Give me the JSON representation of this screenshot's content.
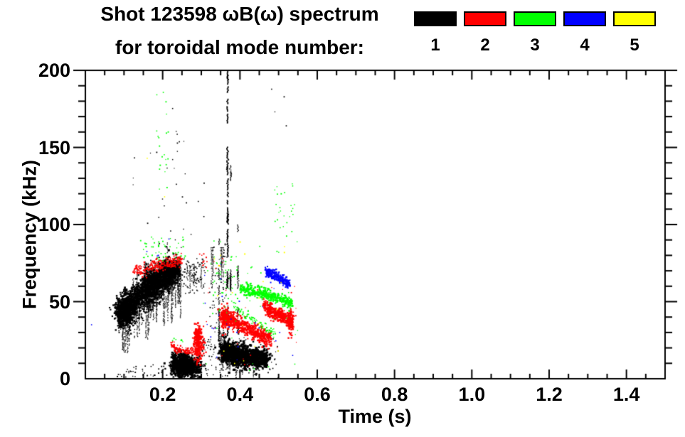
{
  "title": {
    "line1": "Shot 123598 ωB(ω) spectrum",
    "line2": "for toroidal mode number:"
  },
  "legend": {
    "items": [
      {
        "label": "1",
        "color": "#000000"
      },
      {
        "label": "2",
        "color": "#ff0000"
      },
      {
        "label": "3",
        "color": "#00ff00"
      },
      {
        "label": "4",
        "color": "#0000ff"
      },
      {
        "label": "5",
        "color": "#ffff00"
      }
    ]
  },
  "chart_data": {
    "type": "scatter",
    "title": "Shot 123598 ωB(ω) spectrum for toroidal mode number: 1 2 3 4 5",
    "xlabel": "Time (s)",
    "ylabel": "Frequency (kHz)",
    "xlim": [
      0,
      1.5
    ],
    "ylim": [
      0,
      200
    ],
    "x_major_ticks": [
      0.2,
      0.4,
      0.6,
      0.8,
      1.0,
      1.2,
      1.4
    ],
    "x_tick_labels": [
      "0.2",
      "0.4",
      "0.6",
      "0.8",
      "1.0",
      "1.2",
      "1.4"
    ],
    "x_minor_step": 0.05,
    "y_major_ticks": [
      0,
      50,
      100,
      150,
      200
    ],
    "y_tick_labels": [
      "0",
      "50",
      "100",
      "150",
      "200"
    ],
    "y_minor_step": 10,
    "grid": false,
    "legend_position": "top-right",
    "modes": [
      {
        "n": 1,
        "color": "#000000"
      },
      {
        "n": 2,
        "color": "#ff0000"
      },
      {
        "n": 3,
        "color": "#00ff00"
      },
      {
        "n": 4,
        "color": "#0000ff"
      },
      {
        "n": 5,
        "color": "#ffff00"
      }
    ],
    "features": [
      {
        "m": 1,
        "type": "blob",
        "t": 0.105,
        "f": 44,
        "st": 0.013,
        "sf": 4.5,
        "n": 700,
        "s": 2.2
      },
      {
        "m": 1,
        "type": "blob",
        "t": 0.17,
        "f": 60,
        "st": 0.012,
        "sf": 6,
        "n": 450,
        "s": 2.2
      },
      {
        "m": 1,
        "type": "blob",
        "t": 0.21,
        "f": 68,
        "st": 0.01,
        "sf": 5,
        "n": 400,
        "s": 2.2
      },
      {
        "m": 1,
        "type": "band",
        "t0": 0.085,
        "f0": 42,
        "fm": 64,
        "f1": 71,
        "t1": 0.245,
        "sp": 4,
        "n": 1500,
        "s": 2.2
      },
      {
        "m": 1,
        "type": "band",
        "t0": 0.085,
        "f0": 38,
        "fm": 50,
        "f1": 60,
        "t1": 0.2,
        "sp": 5,
        "n": 300,
        "s": 1.8
      },
      {
        "m": 1,
        "type": "streaks",
        "t0": 0.09,
        "t1": 0.25,
        "k": 60,
        "f0": 46,
        "fm": 68,
        "f1": 75,
        "off": 0,
        "lmin": 8,
        "lmax": 38,
        "dir": -1,
        "s": 1.4
      },
      {
        "m": 1,
        "type": "streaks",
        "t0": 0.1,
        "t1": 0.24,
        "k": 12,
        "f0": 46,
        "fm": 68,
        "f1": 75,
        "off": 2,
        "lmin": 5,
        "lmax": 16,
        "dir": 1,
        "s": 1.3
      },
      {
        "m": 1,
        "type": "scatter",
        "t0": 0.08,
        "t1": 0.31,
        "f0": 1,
        "f1": 9,
        "n": 65,
        "s": 1.5
      },
      {
        "m": 1,
        "type": "blob",
        "t": 0.255,
        "f": 8.5,
        "st": 0.014,
        "sf": 3.4,
        "n": 800,
        "s": 2.4
      },
      {
        "m": 1,
        "type": "band",
        "t0": 0.225,
        "f0": 11,
        "fm": 8,
        "f1": 6,
        "t1": 0.3,
        "sp": 3.4,
        "n": 420,
        "s": 2.3
      },
      {
        "m": 1,
        "type": "scatter",
        "t0": 0.25,
        "t1": 0.31,
        "f0": 55,
        "f1": 78,
        "n": 80,
        "s": 1.5
      },
      {
        "m": 1,
        "type": "streaks",
        "t0": 0.26,
        "t1": 0.3,
        "k": 6,
        "f0": 74,
        "fm": 74,
        "f1": 74,
        "off": 0,
        "lmin": 8,
        "lmax": 20,
        "dir": -1,
        "s": 1.3
      },
      {
        "m": 1,
        "type": "scatter",
        "t0": 0.115,
        "t1": 0.31,
        "f0": 85,
        "f1": 148,
        "n": 26,
        "s": 1.4
      },
      {
        "m": 1,
        "type": "scatter",
        "t0": 0.22,
        "t1": 0.27,
        "f0": 148,
        "f1": 183,
        "n": 6,
        "s": 1.4
      },
      {
        "m": 1,
        "type": "spike",
        "t": 0.368,
        "f0": 28,
        "f1": 196,
        "seg": 30,
        "s": 1.8
      },
      {
        "m": 1,
        "type": "spike",
        "t": 0.376,
        "f0": 55,
        "f1": 148,
        "seg": 9,
        "s": 1.4
      },
      {
        "m": 1,
        "type": "spike",
        "t": 0.395,
        "f0": 28,
        "f1": 112,
        "seg": 11,
        "s": 1.4
      },
      {
        "m": 1,
        "type": "spike",
        "t": 0.346,
        "f0": 26,
        "f1": 88,
        "seg": 10,
        "s": 1.4
      },
      {
        "m": 1,
        "type": "blob",
        "t": 0.362,
        "f": 17.5,
        "st": 0.0075,
        "sf": 3.4,
        "n": 280,
        "s": 2.6
      },
      {
        "m": 1,
        "type": "blob",
        "t": 0.386,
        "f": 15.5,
        "st": 0.0075,
        "sf": 3.6,
        "n": 300,
        "s": 2.6
      },
      {
        "m": 1,
        "type": "blob",
        "t": 0.411,
        "f": 14.5,
        "st": 0.0075,
        "sf": 3.4,
        "n": 280,
        "s": 2.6
      },
      {
        "m": 1,
        "type": "blob",
        "t": 0.441,
        "f": 13.5,
        "st": 0.007,
        "sf": 3,
        "n": 240,
        "s": 2.6
      },
      {
        "m": 1,
        "type": "blob",
        "t": 0.462,
        "f": 13,
        "st": 0.006,
        "sf": 2.6,
        "n": 200,
        "s": 2.6
      },
      {
        "m": 1,
        "type": "band",
        "t0": 0.352,
        "f0": 18,
        "fm": 15,
        "f1": 13,
        "t1": 0.47,
        "sp": 2.4,
        "n": 350,
        "s": 2.2
      },
      {
        "m": 1,
        "type": "streaks",
        "t0": 0.345,
        "t1": 0.46,
        "k": 18,
        "f0": 12,
        "fm": 12,
        "f1": 12,
        "off": 0,
        "lmin": 4,
        "lmax": 11,
        "dir": -1,
        "s": 1.3
      },
      {
        "m": 1,
        "type": "streaks",
        "t0": 0.343,
        "t1": 0.36,
        "k": 8,
        "f0": 30,
        "fm": 30,
        "f1": 30,
        "off": 0,
        "lmin": 5,
        "lmax": 14,
        "dir": -1,
        "s": 1.3
      },
      {
        "m": 1,
        "type": "scatter",
        "t0": 0.34,
        "t1": 0.5,
        "f0": 0,
        "f1": 28,
        "n": 90,
        "s": 1.4
      },
      {
        "m": 1,
        "type": "scatter",
        "t0": 0.3,
        "t1": 0.345,
        "f0": 2,
        "f1": 26,
        "n": 50,
        "s": 1.4
      },
      {
        "m": 1,
        "type": "scatter",
        "t0": 0.32,
        "t1": 0.37,
        "f0": 30,
        "f1": 90,
        "n": 55,
        "s": 1.4
      },
      {
        "m": 1,
        "type": "streaks",
        "t0": 0.325,
        "t1": 0.36,
        "k": 8,
        "f0": 85,
        "fm": 85,
        "f1": 85,
        "off": 0,
        "lmin": 10,
        "lmax": 30,
        "dir": -1,
        "s": 1.2
      },
      {
        "m": 1,
        "type": "scatter",
        "t0": 0.46,
        "t1": 0.52,
        "f0": 150,
        "f1": 195,
        "n": 4,
        "s": 1.4
      },
      {
        "m": 2,
        "type": "band",
        "t0": 0.125,
        "f0": 70,
        "fm": 73,
        "f1": 77,
        "t1": 0.25,
        "sp": 2.2,
        "n": 210,
        "s": 1.9
      },
      {
        "m": 2,
        "type": "band",
        "t0": 0.222,
        "f0": 22,
        "fm": 19,
        "f1": 18,
        "t1": 0.25,
        "sp": 1.3,
        "n": 70,
        "s": 1.7
      },
      {
        "m": 2,
        "type": "band",
        "t0": 0.25,
        "f0": 18,
        "fm": 17.8,
        "f1": 17.5,
        "t1": 0.295,
        "sp": 0.9,
        "n": 80,
        "s": 1.6
      },
      {
        "m": 2,
        "type": "blob",
        "t": 0.292,
        "f": 24,
        "st": 0.006,
        "sf": 5.5,
        "n": 260,
        "s": 2.2
      },
      {
        "m": 2,
        "type": "scatter",
        "t0": 0.295,
        "t1": 0.315,
        "f0": 72,
        "f1": 81,
        "n": 10,
        "s": 1.6
      },
      {
        "m": 2,
        "type": "band",
        "t0": 0.353,
        "f0": 41,
        "fm": 33,
        "f1": 25,
        "t1": 0.48,
        "sp": 2.6,
        "n": 520,
        "s": 2.2
      },
      {
        "m": 2,
        "type": "blob",
        "t": 0.36,
        "f": 39,
        "st": 0.006,
        "sf": 3.5,
        "n": 130,
        "s": 2.3
      },
      {
        "m": 2,
        "type": "band",
        "t0": 0.46,
        "f0": 47,
        "fm": 42,
        "f1": 37,
        "t1": 0.535,
        "sp": 2.2,
        "n": 360,
        "s": 2.2
      },
      {
        "m": 2,
        "type": "blob",
        "t": 0.532,
        "f": 37,
        "st": 0.004,
        "sf": 4,
        "n": 70,
        "s": 2.2
      },
      {
        "m": 2,
        "type": "scatter",
        "t0": 0.3,
        "t1": 0.55,
        "f0": 5,
        "f1": 60,
        "n": 28,
        "s": 1.4
      },
      {
        "m": 2,
        "type": "scatter",
        "t0": 0.33,
        "t1": 0.36,
        "f0": 70,
        "f1": 80,
        "n": 5,
        "s": 1.4
      },
      {
        "m": 3,
        "type": "scatter",
        "t0": 0.14,
        "t1": 0.26,
        "f0": 76,
        "f1": 92,
        "n": 50,
        "s": 1.6
      },
      {
        "m": 3,
        "type": "scatter",
        "t0": 0.183,
        "t1": 0.218,
        "f0": 120,
        "f1": 188,
        "n": 20,
        "s": 1.5
      },
      {
        "m": 3,
        "type": "scatter",
        "t0": 0.225,
        "t1": 0.255,
        "f0": 24,
        "f1": 30,
        "n": 8,
        "s": 1.5
      },
      {
        "m": 3,
        "type": "band",
        "t0": 0.4,
        "f0": 58,
        "fm": 56,
        "f1": 49,
        "t1": 0.535,
        "sp": 1.9,
        "n": 380,
        "s": 2.1
      },
      {
        "m": 3,
        "type": "band",
        "t0": 0.378,
        "f0": 48,
        "fm": 38,
        "f1": 29,
        "t1": 0.49,
        "sp": 1.5,
        "n": 85,
        "s": 1.6
      },
      {
        "m": 3,
        "type": "scatter",
        "t0": 0.32,
        "t1": 0.4,
        "f0": 40,
        "f1": 80,
        "n": 50,
        "s": 1.5
      },
      {
        "m": 3,
        "type": "scatter",
        "t0": 0.49,
        "t1": 0.545,
        "f0": 92,
        "f1": 128,
        "n": 26,
        "s": 1.5
      },
      {
        "m": 3,
        "type": "scatter",
        "t0": 0.3,
        "t1": 0.55,
        "f0": 5,
        "f1": 90,
        "n": 32,
        "s": 1.4
      },
      {
        "m": 4,
        "type": "band",
        "t0": 0.466,
        "f0": 70,
        "fm": 66,
        "f1": 61,
        "t1": 0.528,
        "sp": 1.7,
        "n": 250,
        "s": 2.1
      },
      {
        "m": 4,
        "type": "scatter",
        "t0": 0.3,
        "t1": 0.55,
        "f0": 10,
        "f1": 80,
        "n": 24,
        "s": 1.5
      },
      {
        "m": 4,
        "type": "scatter",
        "t0": 0.15,
        "t1": 0.25,
        "f0": 78,
        "f1": 92,
        "n": 4,
        "s": 1.5
      },
      {
        "m": 4,
        "type": "dots",
        "pts": [
          [
            0.016,
            35
          ],
          [
            0.34,
            14
          ],
          [
            0.503,
            30
          ],
          [
            0.31,
            49
          ]
        ],
        "s": 1.6
      },
      {
        "m": 5,
        "type": "scatter",
        "t0": 0.33,
        "t1": 0.53,
        "f0": 8,
        "f1": 92,
        "n": 20,
        "s": 1.6
      },
      {
        "m": 5,
        "type": "dots",
        "pts": [
          [
            0.16,
            143
          ],
          [
            0.205,
            118
          ],
          [
            0.35,
            80
          ],
          [
            0.46,
            63
          ]
        ],
        "s": 1.6
      }
    ]
  }
}
